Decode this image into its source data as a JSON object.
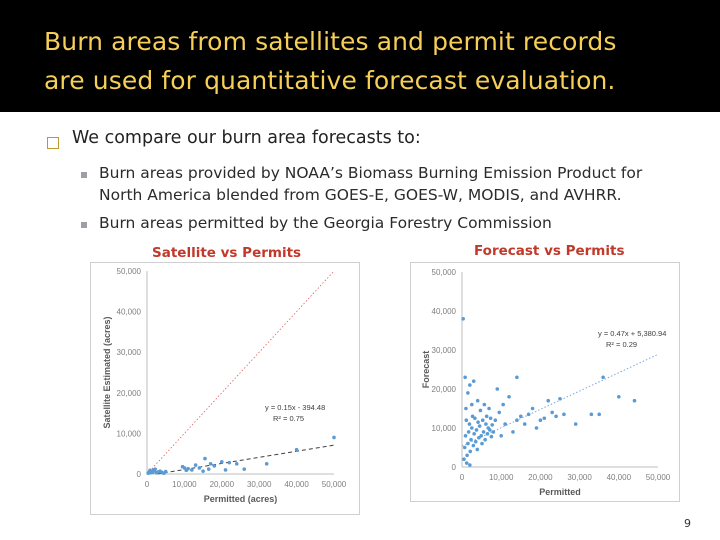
{
  "title": {
    "line1": "Burn areas from satellites and permit records",
    "line2": "are used for quantitative forecast evaluation."
  },
  "bullets": {
    "level1": "We compare our burn area forecasts to:",
    "level2": [
      "Burn areas provided by NOAA’s Biomass Burning Emission Product for",
      "North America blended from GOES-E, GOES-W, MODIS, and AVHRR.",
      "Burn areas permitted by the Georgia Forestry Commission"
    ]
  },
  "page_number": "9",
  "colors": {
    "title_text": "#f5cf57",
    "title_bar": "#000000",
    "chart_title": "#c0392b",
    "points": "#5b9bd5"
  },
  "chart_data": [
    {
      "type": "scatter",
      "title": "Satellite vs Permits",
      "xlabel": "Permitted (acres)",
      "ylabel": "Satellite Estimated (acres)",
      "xlim": [
        0,
        50000
      ],
      "ylim": [
        0,
        50000
      ],
      "xticks": [
        "0",
        "10,000",
        "20,000",
        "30,000",
        "40,000",
        "50,000"
      ],
      "yticks": [
        "0",
        "10,000",
        "20,000",
        "30,000",
        "40,000",
        "50,000"
      ],
      "equation": "y = 0.15x - 394.48",
      "r2": "R² = 0.75",
      "trendline": {
        "slope": 0.15,
        "intercept": -394.48
      },
      "one_to_one": true,
      "points": [
        [
          300,
          200
        ],
        [
          600,
          500
        ],
        [
          900,
          300
        ],
        [
          1200,
          600
        ],
        [
          1500,
          400
        ],
        [
          2000,
          800
        ],
        [
          2500,
          300
        ],
        [
          3000,
          500
        ],
        [
          3500,
          700
        ],
        [
          4000,
          400
        ],
        [
          4500,
          200
        ],
        [
          5000,
          600
        ],
        [
          1800,
          1000
        ],
        [
          800,
          900
        ],
        [
          2200,
          1200
        ],
        [
          9500,
          1800
        ],
        [
          10000,
          1500
        ],
        [
          10500,
          900
        ],
        [
          11000,
          1300
        ],
        [
          12000,
          1000
        ],
        [
          13000,
          2200
        ],
        [
          14000,
          1500
        ],
        [
          15000,
          700
        ],
        [
          15500,
          3800
        ],
        [
          16500,
          1200
        ],
        [
          17000,
          2500
        ],
        [
          18000,
          2000
        ],
        [
          20000,
          3000
        ],
        [
          21000,
          1000
        ],
        [
          22000,
          2800
        ],
        [
          24000,
          2500
        ],
        [
          26000,
          1200
        ],
        [
          32000,
          2500
        ],
        [
          40000,
          6000
        ],
        [
          50000,
          9000
        ]
      ]
    },
    {
      "type": "scatter",
      "title": "Forecast vs Permits",
      "xlabel": "Permitted",
      "ylabel": "Forecast",
      "xlim": [
        0,
        50000
      ],
      "ylim": [
        0,
        50000
      ],
      "xticks": [
        "0",
        "10,000",
        "20,000",
        "30,000",
        "40,000",
        "50,000"
      ],
      "yticks": [
        "0",
        "10,000",
        "20,000",
        "30,000",
        "40,000",
        "50,000"
      ],
      "equation": "y = 0.47x + 5,380.94",
      "r2": "R² = 0.29",
      "trendline": {
        "slope": 0.47,
        "intercept": 5380.94
      },
      "points": [
        [
          300,
          38000
        ],
        [
          500,
          2000
        ],
        [
          700,
          5000
        ],
        [
          900,
          8000
        ],
        [
          1100,
          12000
        ],
        [
          1300,
          3000
        ],
        [
          1500,
          6000
        ],
        [
          1700,
          9000
        ],
        [
          1900,
          11000
        ],
        [
          2100,
          4000
        ],
        [
          2300,
          7000
        ],
        [
          2500,
          10000
        ],
        [
          2700,
          13000
        ],
        [
          2900,
          5500
        ],
        [
          3100,
          8500
        ],
        [
          3300,
          12500
        ],
        [
          3500,
          6500
        ],
        [
          3700,
          9500
        ],
        [
          3900,
          4500
        ],
        [
          4100,
          11500
        ],
        [
          4300,
          7500
        ],
        [
          4500,
          10500
        ],
        [
          4700,
          14500
        ],
        [
          4900,
          8000
        ],
        [
          5100,
          6000
        ],
        [
          5300,
          12000
        ],
        [
          5500,
          9000
        ],
        [
          5700,
          16000
        ],
        [
          5900,
          7000
        ],
        [
          6100,
          11000
        ],
        [
          6300,
          13000
        ],
        [
          6500,
          8500
        ],
        [
          6700,
          10000
        ],
        [
          6900,
          15000
        ],
        [
          7100,
          9500
        ],
        [
          7300,
          12500
        ],
        [
          7500,
          7800
        ],
        [
          7700,
          10800
        ],
        [
          8000,
          9000
        ],
        [
          8500,
          12000
        ],
        [
          9000,
          20000
        ],
        [
          9500,
          14000
        ],
        [
          10000,
          8000
        ],
        [
          10500,
          16000
        ],
        [
          11000,
          11000
        ],
        [
          12000,
          18000
        ],
        [
          13000,
          9000
        ],
        [
          14000,
          12000
        ],
        [
          15000,
          13000
        ],
        [
          16000,
          11000
        ],
        [
          17000,
          13500
        ],
        [
          18000,
          15000
        ],
        [
          19000,
          10000
        ],
        [
          20000,
          12000
        ],
        [
          21000,
          12500
        ],
        [
          22000,
          17000
        ],
        [
          23000,
          14000
        ],
        [
          24000,
          13000
        ],
        [
          25000,
          17500
        ],
        [
          26000,
          13500
        ],
        [
          29000,
          11000
        ],
        [
          33000,
          13500
        ],
        [
          35000,
          13500
        ],
        [
          36000,
          23000
        ],
        [
          40000,
          18000
        ],
        [
          44000,
          17000
        ],
        [
          1000,
          15000
        ],
        [
          1500,
          19000
        ],
        [
          2000,
          21000
        ],
        [
          2500,
          16000
        ],
        [
          3000,
          22000
        ],
        [
          4000,
          17000
        ],
        [
          14000,
          23000
        ],
        [
          800,
          23000
        ],
        [
          1200,
          1000
        ],
        [
          2000,
          500
        ]
      ]
    }
  ]
}
